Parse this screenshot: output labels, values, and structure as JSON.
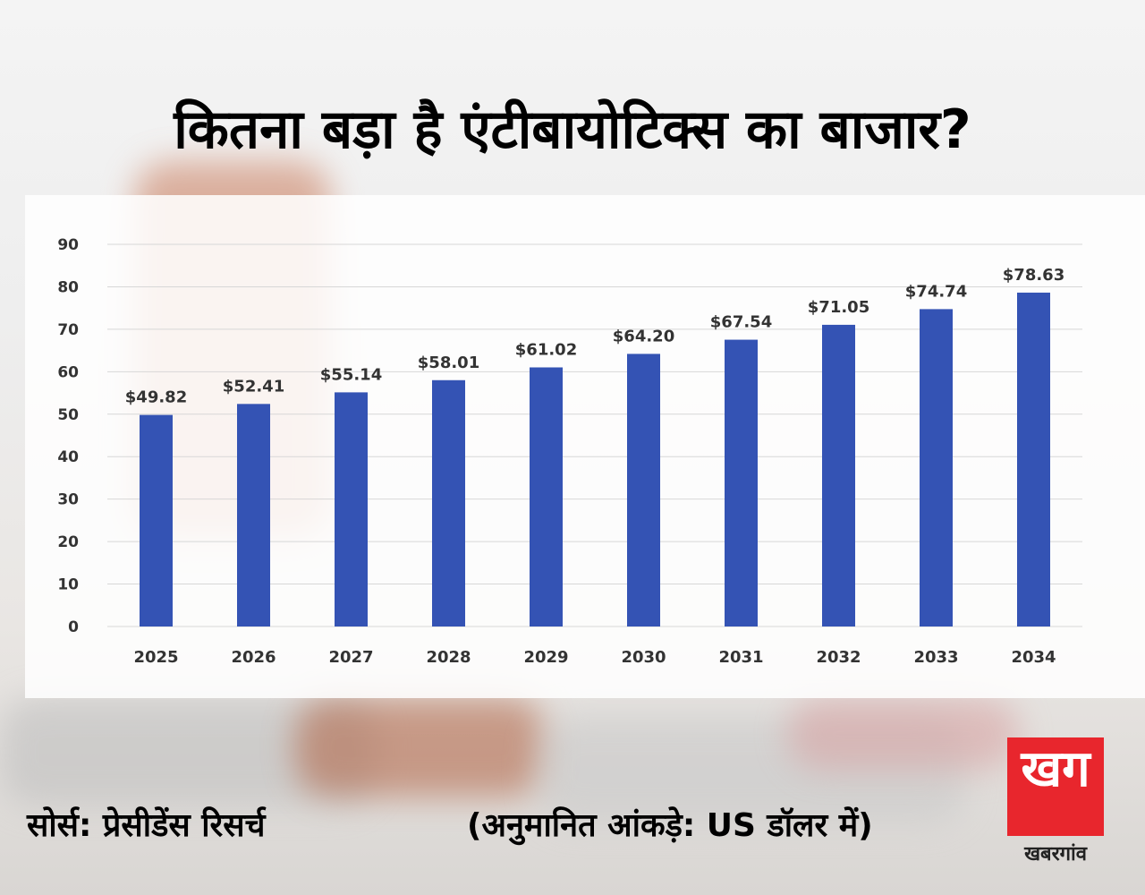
{
  "headline": "कितना बड़ा है एंटीबायोटिक्स का बाजार?",
  "footer": {
    "source": "सोर्स:  प्रेसीडेंस रिसर्च",
    "note": "(अनुमानित आंकड़े: US डॉलर में)"
  },
  "logo": {
    "glyph": "खग",
    "wordmark": "खबरगांव"
  },
  "colors": {
    "bar": "#3453b4",
    "text": "#000000",
    "axis_text": "#333333",
    "logo_red": "#e8262d"
  },
  "chart_data": {
    "type": "bar",
    "categories": [
      "2025",
      "2026",
      "2027",
      "2028",
      "2029",
      "2030",
      "2031",
      "2032",
      "2033",
      "2034"
    ],
    "values": [
      49.82,
      52.41,
      55.14,
      58.01,
      61.02,
      64.2,
      67.54,
      71.05,
      74.74,
      78.63
    ],
    "data_labels": [
      "$49.82",
      "$52.41",
      "$55.14",
      "$58.01",
      "$61.02",
      "$64.20",
      "$67.54",
      "$71.05",
      "$74.74",
      "$78.63"
    ],
    "yticks": [
      0,
      10,
      20,
      30,
      40,
      50,
      60,
      70,
      80,
      90
    ],
    "ylim": [
      0,
      90
    ],
    "title": "",
    "xlabel": "",
    "ylabel": "",
    "grid": true,
    "legend": "none"
  }
}
